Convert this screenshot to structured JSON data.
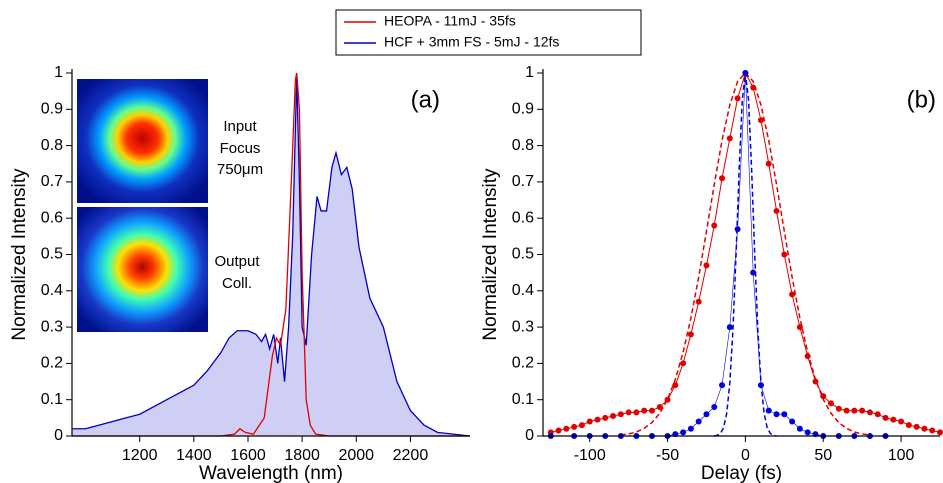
{
  "chart_data": [
    {
      "type": "line",
      "xlabel": "Wavelength (nm)",
      "ylabel": "Normalized Intensity",
      "xlim": [
        950,
        2420
      ],
      "ylim": [
        0,
        1
      ],
      "xticks": [
        1200,
        1400,
        1600,
        1800,
        2000,
        2200
      ],
      "yticks": [
        0,
        0.1,
        0.2,
        0.3,
        0.4,
        0.5,
        0.6,
        0.7,
        0.8,
        0.9,
        1
      ],
      "annotations": [
        "(a)",
        "Input",
        "Focus",
        "750μm",
        "Output",
        "Coll."
      ],
      "series": [
        {
          "name": "HEOPA - 11mJ - 35fs",
          "color": "#e00000",
          "x": [
            950,
            1500,
            1550,
            1570,
            1590,
            1620,
            1660,
            1690,
            1705,
            1720,
            1740,
            1760,
            1775,
            1780,
            1790,
            1800,
            1815,
            1830,
            1850,
            1900,
            2420
          ],
          "values": [
            0,
            0,
            0.005,
            0.02,
            0.01,
            0.005,
            0.05,
            0.22,
            0.27,
            0.25,
            0.35,
            0.7,
            0.98,
            1,
            0.9,
            0.45,
            0.1,
            0.03,
            0.005,
            0,
            0
          ]
        },
        {
          "name": "HCF + 3mm FS - 5mJ - 12fs",
          "color": "#0000c0",
          "fill": "#cfcff5",
          "x": [
            950,
            1000,
            1100,
            1200,
            1300,
            1400,
            1450,
            1500,
            1530,
            1560,
            1600,
            1630,
            1650,
            1665,
            1680,
            1695,
            1710,
            1720,
            1735,
            1750,
            1765,
            1780,
            1790,
            1800,
            1815,
            1835,
            1855,
            1870,
            1890,
            1910,
            1925,
            1945,
            1965,
            1985,
            2010,
            2050,
            2100,
            2150,
            2200,
            2250,
            2300,
            2420
          ],
          "values": [
            0.02,
            0.02,
            0.04,
            0.06,
            0.1,
            0.14,
            0.18,
            0.23,
            0.27,
            0.29,
            0.29,
            0.28,
            0.26,
            0.28,
            0.24,
            0.28,
            0.2,
            0.27,
            0.15,
            0.3,
            0.55,
            0.99,
            0.7,
            0.3,
            0.25,
            0.5,
            0.66,
            0.62,
            0.62,
            0.74,
            0.78,
            0.72,
            0.74,
            0.68,
            0.52,
            0.38,
            0.3,
            0.15,
            0.07,
            0.03,
            0.01,
            0
          ]
        }
      ]
    },
    {
      "type": "line",
      "xlabel": "Delay (fs)",
      "ylabel": "Normalized Intensity",
      "xlim": [
        -130,
        125
      ],
      "ylim": [
        0,
        1
      ],
      "xticks": [
        -100,
        -50,
        0,
        50,
        100
      ],
      "yticks": [
        0,
        0.1,
        0.2,
        0.3,
        0.4,
        0.5,
        0.6,
        0.7,
        0.8,
        0.9,
        1
      ],
      "annotations": [
        "(b)"
      ],
      "series": [
        {
          "color": "#e00000",
          "markers": true,
          "linewidth": 1,
          "x": [
            -125,
            -120,
            -115,
            -110,
            -105,
            -100,
            -95,
            -90,
            -85,
            -80,
            -75,
            -70,
            -65,
            -60,
            -55,
            -50,
            -45,
            -40,
            -35,
            -30,
            -25,
            -20,
            -15,
            -10,
            -5,
            0,
            5,
            10,
            15,
            20,
            25,
            30,
            35,
            40,
            45,
            50,
            55,
            60,
            65,
            70,
            75,
            80,
            85,
            90,
            95,
            100,
            105,
            110,
            115,
            120,
            125
          ],
          "values": [
            0.01,
            0.015,
            0.02,
            0.025,
            0.03,
            0.04,
            0.045,
            0.05,
            0.055,
            0.06,
            0.065,
            0.065,
            0.07,
            0.07,
            0.08,
            0.1,
            0.14,
            0.2,
            0.28,
            0.37,
            0.47,
            0.58,
            0.71,
            0.82,
            0.93,
            1,
            0.96,
            0.87,
            0.75,
            0.62,
            0.5,
            0.39,
            0.3,
            0.22,
            0.15,
            0.11,
            0.09,
            0.075,
            0.07,
            0.07,
            0.07,
            0.065,
            0.06,
            0.05,
            0.045,
            0.04,
            0.03,
            0.025,
            0.02,
            0.015,
            0.01
          ]
        },
        {
          "color": "#e00000",
          "dashed": true,
          "linewidth": 1.5,
          "x": [
            -80,
            -75,
            -70,
            -65,
            -60,
            -55,
            -50,
            -45,
            -40,
            -35,
            -30,
            -25,
            -20,
            -15,
            -10,
            -5,
            0,
            5,
            10,
            15,
            20,
            25,
            30,
            35,
            40,
            45,
            50,
            55,
            60,
            65,
            70,
            75,
            80
          ],
          "values": [
            0.003,
            0.0057,
            0.011,
            0.021,
            0.037,
            0.0625,
            0.101,
            0.156,
            0.231,
            0.325,
            0.438,
            0.564,
            0.693,
            0.814,
            0.912,
            0.977,
            1,
            0.977,
            0.912,
            0.814,
            0.693,
            0.564,
            0.438,
            0.325,
            0.231,
            0.156,
            0.101,
            0.0625,
            0.037,
            0.021,
            0.011,
            0.0057,
            0.003
          ]
        },
        {
          "color": "#0000e0",
          "markers": true,
          "linewidth": 0.6,
          "x": [
            -125,
            -110,
            -100,
            -90,
            -80,
            -70,
            -60,
            -50,
            -45,
            -40,
            -35,
            -30,
            -25,
            -20,
            -15,
            -10,
            -5,
            0,
            5,
            10,
            15,
            20,
            25,
            30,
            35,
            40,
            45,
            50,
            60,
            70,
            80,
            90
          ],
          "values": [
            0,
            0,
            0,
            0,
            0,
            0,
            0,
            0,
            0.005,
            0.01,
            0.02,
            0.04,
            0.06,
            0.08,
            0.14,
            0.3,
            0.57,
            1,
            0.45,
            0.14,
            0.07,
            0.06,
            0.06,
            0.04,
            0.02,
            0.01,
            0.005,
            0,
            0,
            0,
            0,
            0
          ]
        },
        {
          "color": "#0000e0",
          "dashed": true,
          "linewidth": 1.5,
          "x": [
            -20,
            -18,
            -16,
            -14,
            -12,
            -10,
            -8,
            -6,
            -4,
            -2,
            0,
            2,
            4,
            6,
            8,
            10,
            12,
            14,
            16,
            18,
            20
          ],
          "values": [
            0,
            0.002,
            0.0072,
            0.023,
            0.0625,
            0.146,
            0.292,
            0.5,
            0.735,
            0.926,
            1,
            0.926,
            0.735,
            0.5,
            0.292,
            0.146,
            0.0625,
            0.023,
            0.0072,
            0.002,
            0
          ]
        }
      ]
    }
  ]
}
